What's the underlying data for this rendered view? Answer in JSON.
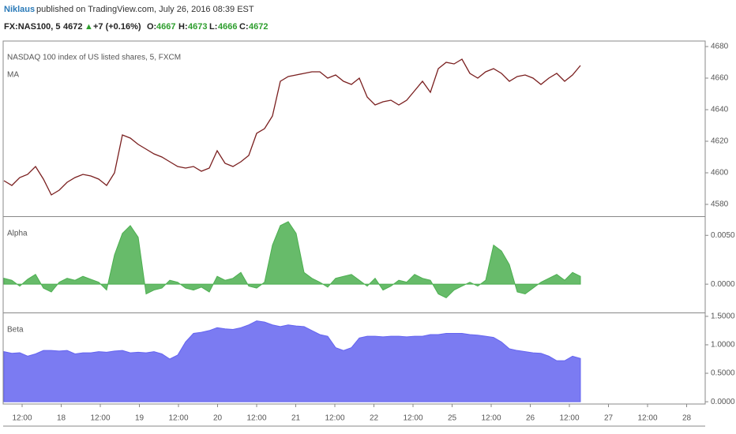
{
  "header": {
    "author": "Niklaus",
    "published": "published on TradingView.com, July 26, 2016 08:39 EST"
  },
  "symbol": {
    "name": "FX:NAS100, 5",
    "last": 4672,
    "arrow": "▲",
    "change": "+7 (+0.16%)",
    "o_label": "O:",
    "open": 4667,
    "h_label": "H:",
    "high": 4673,
    "l_label": "L:",
    "low": 4666,
    "c_label": "C:",
    "close": 4672
  },
  "x_axis": {
    "labels": [
      "12:00",
      "18",
      "12:00",
      "19",
      "12:00",
      "20",
      "12:00",
      "21",
      "12:00",
      "22",
      "12:00",
      "25",
      "12:00",
      "26",
      "12:00",
      "27",
      "12:00",
      "28"
    ]
  },
  "chart_data": [
    {
      "type": "line",
      "title": "NASDAQ 100 index of US listed shares, 5, FXCM",
      "series": [
        {
          "name": "MA",
          "color": "#7a1f1f",
          "values": [
            4595,
            4592,
            4597,
            4599,
            4604,
            4596,
            4586,
            4589,
            4594,
            4597,
            4599,
            4598,
            4596,
            4592,
            4600,
            4624,
            4622,
            4618,
            4615,
            4612,
            4610,
            4607,
            4604,
            4603,
            4604,
            4601,
            4603,
            4614,
            4606,
            4604,
            4607,
            4611,
            4625,
            4628,
            4636,
            4658,
            4661,
            4662,
            4663,
            4664,
            4664,
            4660,
            4662,
            4658,
            4656,
            4660,
            4648,
            4643,
            4645,
            4646,
            4643,
            4646,
            4652,
            4658,
            4651,
            4666,
            4670,
            4669,
            4672,
            4663,
            4660,
            4664,
            4666,
            4663,
            4658,
            4661,
            4662,
            4660,
            4656,
            4660,
            4663,
            4658,
            4662,
            4668
          ]
        }
      ],
      "ylim": [
        4573,
        4683
      ],
      "yticks": [
        4580,
        4600,
        4620,
        4640,
        4660,
        4680
      ]
    },
    {
      "type": "area",
      "title": "Alpha",
      "color": "#4caf50",
      "values": [
        0.0006,
        0.0004,
        -0.0002,
        0.0005,
        0.001,
        -0.0004,
        -0.0008,
        0.0002,
        0.0006,
        0.0004,
        0.0008,
        0.0005,
        0.0002,
        -0.0006,
        0.003,
        0.0052,
        0.006,
        0.0048,
        -0.001,
        -0.0006,
        -0.0004,
        0.0004,
        0.0002,
        -0.0004,
        -0.0006,
        -0.0003,
        -0.0008,
        0.0008,
        0.0004,
        0.0006,
        0.0012,
        -0.0002,
        -0.0004,
        0.0002,
        0.004,
        0.006,
        0.0064,
        0.0052,
        0.0012,
        0.0006,
        0.0002,
        -0.0003,
        0.0006,
        0.0008,
        0.001,
        0.0004,
        -0.0002,
        0.0006,
        -0.0006,
        -0.0002,
        0.0004,
        0.0002,
        0.001,
        0.0006,
        0.0004,
        -0.001,
        -0.0014,
        -0.0006,
        -0.0002,
        0.0002,
        -0.0002,
        0.0004,
        0.004,
        0.0034,
        0.002,
        -0.0008,
        -0.001,
        -0.0004,
        0.0002,
        0.0006,
        0.001,
        0.0004,
        0.0012,
        0.0008
      ],
      "ylim": [
        -0.0029,
        0.0068
      ],
      "yticks": [
        {
          "value": 0.005,
          "label": "0.0050"
        },
        {
          "value": 0,
          "label": "0.0000"
        }
      ]
    },
    {
      "type": "area",
      "title": "Beta",
      "color": "#6464f0",
      "values": [
        0.88,
        0.85,
        0.86,
        0.8,
        0.84,
        0.9,
        0.9,
        0.89,
        0.9,
        0.84,
        0.86,
        0.86,
        0.88,
        0.87,
        0.89,
        0.9,
        0.86,
        0.87,
        0.86,
        0.88,
        0.84,
        0.75,
        0.82,
        1.05,
        1.2,
        1.22,
        1.25,
        1.3,
        1.28,
        1.27,
        1.3,
        1.35,
        1.42,
        1.4,
        1.35,
        1.32,
        1.35,
        1.33,
        1.32,
        1.25,
        1.18,
        1.15,
        0.95,
        0.9,
        0.95,
        1.12,
        1.15,
        1.15,
        1.14,
        1.15,
        1.15,
        1.14,
        1.15,
        1.15,
        1.18,
        1.18,
        1.2,
        1.2,
        1.2,
        1.18,
        1.17,
        1.15,
        1.13,
        1.05,
        0.93,
        0.9,
        0.88,
        0.86,
        0.85,
        0.8,
        0.72,
        0.72,
        0.8,
        0.76
      ],
      "ylim": [
        -0.04,
        1.54
      ],
      "yticks": [
        {
          "value": 1.5,
          "label": "1.5000"
        },
        {
          "value": 1,
          "label": "1.0000"
        },
        {
          "value": 0.5,
          "label": "0.5000"
        },
        {
          "value": 0,
          "label": "0.0000"
        }
      ]
    }
  ]
}
